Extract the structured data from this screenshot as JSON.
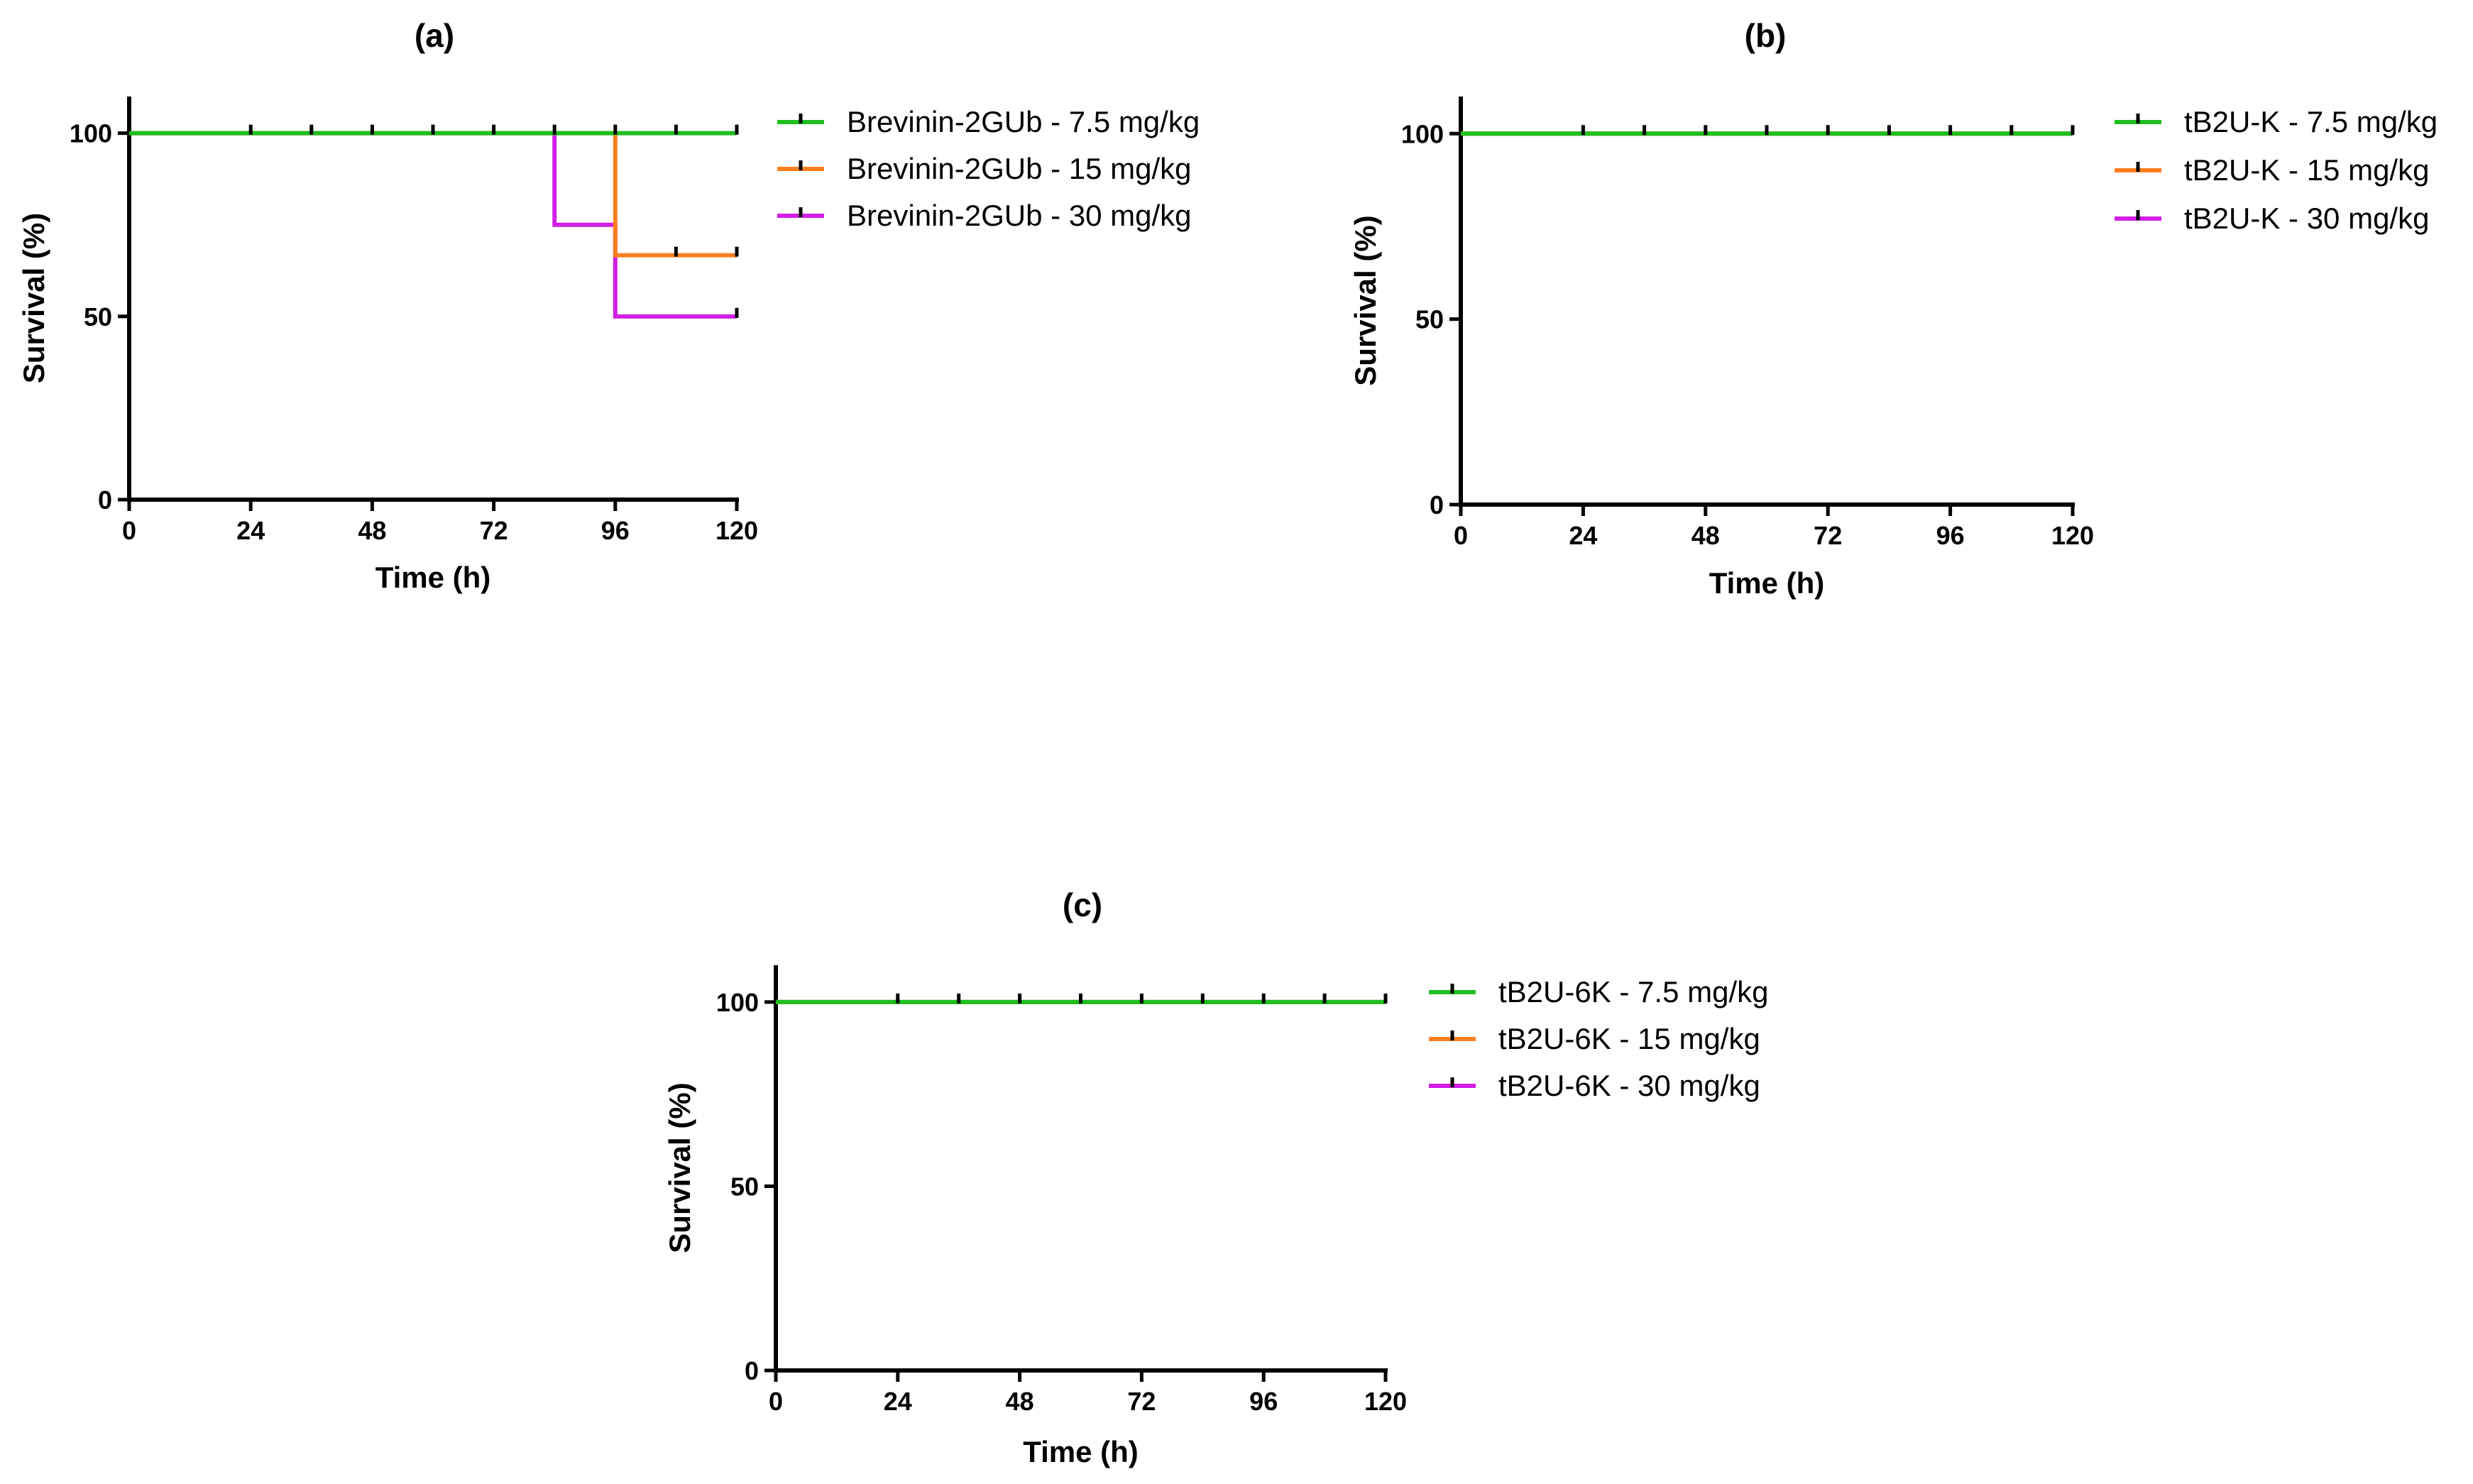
{
  "colors": {
    "axis": "#000000",
    "series_7_5": "#1fbf1f",
    "series_15": "#ff7f1e",
    "series_30": "#d21ee6"
  },
  "chart_data": [
    {
      "type": "line",
      "subtype": "kaplan-meier survival step plot",
      "title": "(a)",
      "xlabel": "Time (h)",
      "ylabel": "Survival (%)",
      "xlim": [
        0,
        120
      ],
      "ylim": [
        0,
        110
      ],
      "x_ticks": [
        "0",
        "24",
        "48",
        "72",
        "96",
        "120"
      ],
      "y_ticks": [
        "0",
        "50",
        "100"
      ],
      "legend_position": "right",
      "series": [
        {
          "name": "Brevinin-2GUb - 7.5 mg/kg",
          "color": "#1fbf1f",
          "steps": [
            [
              0,
              100
            ],
            [
              120,
              100
            ]
          ],
          "censored": [
            24,
            36,
            48,
            60,
            72,
            84,
            96,
            108,
            120
          ]
        },
        {
          "name": "Brevinin-2GUb - 15 mg/kg",
          "color": "#ff7f1e",
          "steps": [
            [
              0,
              100
            ],
            [
              96,
              100
            ],
            [
              96,
              66.7
            ],
            [
              120,
              66.7
            ]
          ],
          "censored": [
            108,
            120
          ]
        },
        {
          "name": "Brevinin-2GUb - 30 mg/kg",
          "color": "#d21ee6",
          "steps": [
            [
              0,
              100
            ],
            [
              84,
              100
            ],
            [
              84,
              75
            ],
            [
              96,
              75
            ],
            [
              96,
              50
            ],
            [
              120,
              50
            ]
          ],
          "censored": [
            120
          ]
        }
      ]
    },
    {
      "type": "line",
      "subtype": "kaplan-meier survival step plot",
      "title": "(b)",
      "xlabel": "Time (h)",
      "ylabel": "Survival (%)",
      "xlim": [
        0,
        120
      ],
      "ylim": [
        0,
        110
      ],
      "x_ticks": [
        "0",
        "24",
        "48",
        "72",
        "96",
        "120"
      ],
      "y_ticks": [
        "0",
        "50",
        "100"
      ],
      "legend_position": "right",
      "series": [
        {
          "name": "tB2U-K - 7.5 mg/kg",
          "color": "#1fbf1f",
          "steps": [
            [
              0,
              100
            ],
            [
              120,
              100
            ]
          ],
          "censored": [
            24,
            36,
            48,
            60,
            72,
            84,
            96,
            108,
            120
          ]
        },
        {
          "name": "tB2U-K - 15 mg/kg",
          "color": "#ff7f1e",
          "steps": [
            [
              0,
              100
            ],
            [
              120,
              100
            ]
          ],
          "censored": []
        },
        {
          "name": "tB2U-K - 30 mg/kg",
          "color": "#d21ee6",
          "steps": [
            [
              0,
              100
            ],
            [
              120,
              100
            ]
          ],
          "censored": []
        }
      ]
    },
    {
      "type": "line",
      "subtype": "kaplan-meier survival step plot",
      "title": "(c)",
      "xlabel": "Time (h)",
      "ylabel": "Survival (%)",
      "xlim": [
        0,
        120
      ],
      "ylim": [
        0,
        110
      ],
      "x_ticks": [
        "0",
        "24",
        "48",
        "72",
        "96",
        "120"
      ],
      "y_ticks": [
        "0",
        "50",
        "100"
      ],
      "legend_position": "right",
      "series": [
        {
          "name": "tB2U-6K - 7.5 mg/kg",
          "color": "#1fbf1f",
          "steps": [
            [
              0,
              100
            ],
            [
              120,
              100
            ]
          ],
          "censored": [
            24,
            36,
            48,
            60,
            72,
            84,
            96,
            108,
            120
          ]
        },
        {
          "name": "tB2U-6K - 15 mg/kg",
          "color": "#ff7f1e",
          "steps": [
            [
              0,
              100
            ],
            [
              120,
              100
            ]
          ],
          "censored": []
        },
        {
          "name": "tB2U-6K - 30 mg/kg",
          "color": "#d21ee6",
          "steps": [
            [
              0,
              100
            ],
            [
              120,
              100
            ]
          ],
          "censored": []
        }
      ]
    }
  ]
}
